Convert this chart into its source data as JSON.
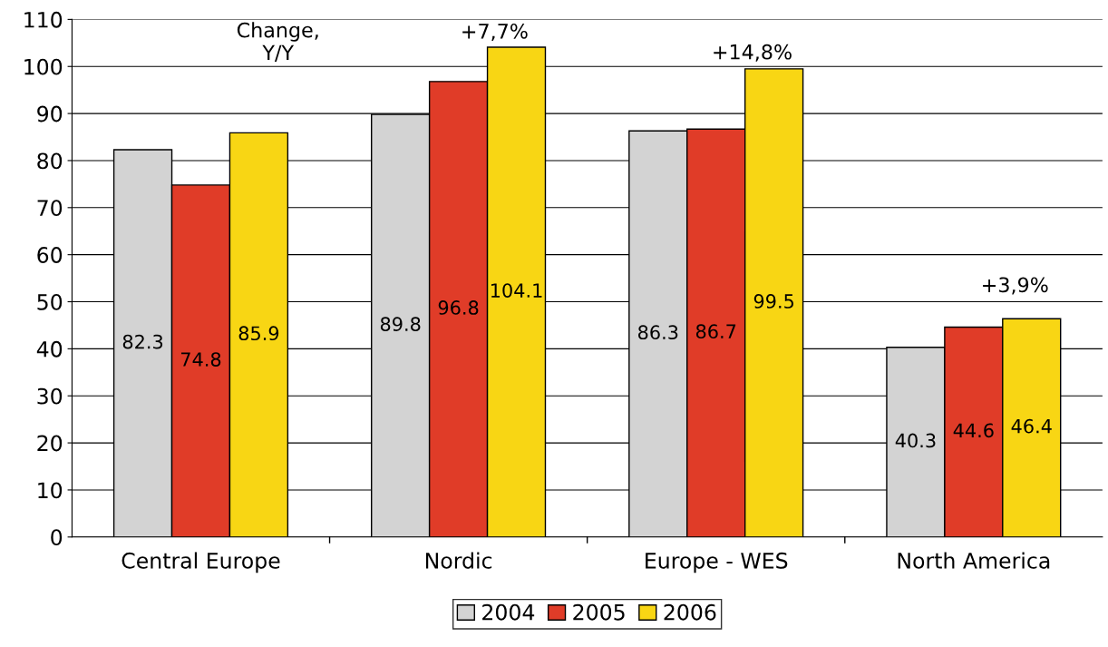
{
  "chart_data": {
    "type": "bar",
    "categories": [
      "Central Europe",
      "Nordic",
      "Europe - WES",
      "North America"
    ],
    "series": [
      {
        "name": "2004",
        "color": "#d3d3d3",
        "values": [
          82.3,
          89.8,
          86.3,
          40.3
        ]
      },
      {
        "name": "2005",
        "color": "#e03c28",
        "values": [
          74.8,
          96.8,
          86.7,
          44.6
        ]
      },
      {
        "name": "2006",
        "color": "#f8d614",
        "values": [
          85.9,
          104.1,
          99.5,
          46.4
        ]
      }
    ],
    "ylim": [
      0,
      110
    ],
    "yticks": [
      0,
      10,
      20,
      30,
      40,
      50,
      60,
      70,
      80,
      90,
      100,
      110
    ],
    "grid": "y",
    "legend": "bottom",
    "data_labels": true,
    "annotations": [
      "Change,\nY/Y",
      "+7,7%",
      "+14,8%",
      "+3,9%"
    ]
  }
}
